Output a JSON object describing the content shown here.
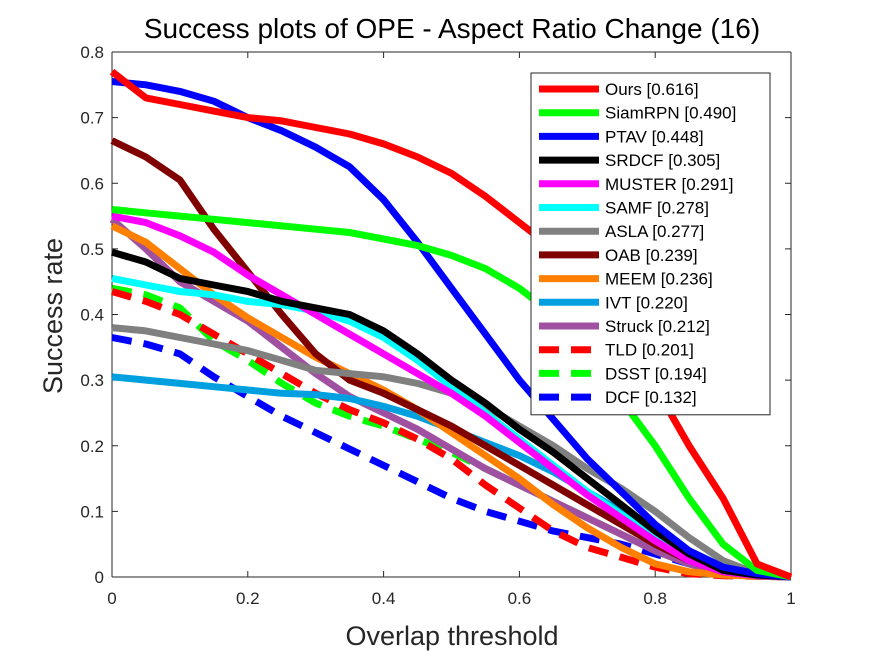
{
  "chart_data": {
    "type": "line",
    "title": "Success plots of OPE - Aspect Ratio Change (16)",
    "xlabel": "Overlap threshold",
    "ylabel": "Success rate",
    "xlim": [
      0,
      1
    ],
    "ylim": [
      0,
      0.8
    ],
    "xticks": [
      0,
      0.2,
      0.4,
      0.6,
      0.8,
      1
    ],
    "xtick_labels": [
      "0",
      "0.2",
      "0.4",
      "0.6",
      "0.8",
      "1"
    ],
    "yticks": [
      0,
      0.1,
      0.2,
      0.3,
      0.4,
      0.5,
      0.6,
      0.7,
      0.8
    ],
    "ytick_labels": [
      "0",
      "0.1",
      "0.2",
      "0.3",
      "0.4",
      "0.5",
      "0.6",
      "0.7",
      "0.8"
    ],
    "grid": false,
    "legend_position": "top-right",
    "x": [
      0,
      0.05,
      0.1,
      0.15,
      0.2,
      0.25,
      0.3,
      0.35,
      0.4,
      0.45,
      0.5,
      0.55,
      0.6,
      0.65,
      0.7,
      0.75,
      0.8,
      0.85,
      0.9,
      0.95,
      1
    ],
    "series": [
      {
        "name": "Ours [0.616]",
        "color": "#ff0000",
        "dashed": false,
        "values": [
          0.77,
          0.73,
          0.72,
          0.71,
          0.7,
          0.695,
          0.685,
          0.675,
          0.66,
          0.64,
          0.615,
          0.58,
          0.54,
          0.5,
          0.45,
          0.38,
          0.29,
          0.2,
          0.12,
          0.02,
          0
        ]
      },
      {
        "name": "SiamRPN [0.490]",
        "color": "#00ff00",
        "dashed": false,
        "values": [
          0.56,
          0.555,
          0.55,
          0.545,
          0.54,
          0.535,
          0.53,
          0.525,
          0.515,
          0.505,
          0.49,
          0.47,
          0.44,
          0.4,
          0.34,
          0.27,
          0.2,
          0.12,
          0.05,
          0.01,
          0
        ]
      },
      {
        "name": "PTAV [0.448]",
        "color": "#0000ff",
        "dashed": false,
        "values": [
          0.755,
          0.75,
          0.74,
          0.725,
          0.7,
          0.68,
          0.655,
          0.625,
          0.575,
          0.51,
          0.44,
          0.37,
          0.3,
          0.24,
          0.18,
          0.13,
          0.08,
          0.04,
          0.015,
          0.005,
          0
        ]
      },
      {
        "name": "SRDCF [0.305]",
        "color": "#000000",
        "dashed": false,
        "values": [
          0.495,
          0.48,
          0.455,
          0.445,
          0.435,
          0.42,
          0.41,
          0.4,
          0.375,
          0.34,
          0.3,
          0.265,
          0.225,
          0.19,
          0.15,
          0.11,
          0.07,
          0.035,
          0.01,
          0.003,
          0
        ]
      },
      {
        "name": "MUSTER [0.291]",
        "color": "#ff00ff",
        "dashed": false,
        "values": [
          0.55,
          0.54,
          0.52,
          0.495,
          0.46,
          0.43,
          0.4,
          0.37,
          0.34,
          0.31,
          0.28,
          0.245,
          0.205,
          0.165,
          0.125,
          0.09,
          0.055,
          0.025,
          0.008,
          0.002,
          0
        ]
      },
      {
        "name": "SAMF [0.278]",
        "color": "#00ffff",
        "dashed": false,
        "values": [
          0.455,
          0.445,
          0.435,
          0.43,
          0.42,
          0.415,
          0.405,
          0.39,
          0.365,
          0.33,
          0.29,
          0.25,
          0.21,
          0.17,
          0.13,
          0.095,
          0.06,
          0.03,
          0.01,
          0.002,
          0
        ]
      },
      {
        "name": "ASLA [0.277]",
        "color": "#808080",
        "dashed": false,
        "values": [
          0.38,
          0.375,
          0.365,
          0.355,
          0.345,
          0.33,
          0.315,
          0.31,
          0.305,
          0.295,
          0.28,
          0.26,
          0.23,
          0.2,
          0.165,
          0.135,
          0.1,
          0.06,
          0.025,
          0.005,
          0
        ]
      },
      {
        "name": "OAB [0.239]",
        "color": "#800000",
        "dashed": false,
        "values": [
          0.665,
          0.64,
          0.605,
          0.53,
          0.465,
          0.4,
          0.34,
          0.3,
          0.28,
          0.255,
          0.23,
          0.2,
          0.17,
          0.14,
          0.11,
          0.08,
          0.05,
          0.025,
          0.008,
          0.002,
          0
        ]
      },
      {
        "name": "MEEM [0.236]",
        "color": "#ff8000",
        "dashed": false,
        "values": [
          0.535,
          0.51,
          0.47,
          0.43,
          0.395,
          0.365,
          0.335,
          0.31,
          0.285,
          0.255,
          0.22,
          0.185,
          0.15,
          0.11,
          0.075,
          0.045,
          0.02,
          0.008,
          0.003,
          0.001,
          0
        ]
      },
      {
        "name": "IVT [0.220]",
        "color": "#00a0e0",
        "dashed": false,
        "values": [
          0.305,
          0.3,
          0.295,
          0.29,
          0.285,
          0.28,
          0.278,
          0.272,
          0.26,
          0.245,
          0.225,
          0.205,
          0.185,
          0.16,
          0.13,
          0.1,
          0.07,
          0.04,
          0.015,
          0.003,
          0
        ]
      },
      {
        "name": "Struck [0.212]",
        "color": "#a050a0",
        "dashed": false,
        "values": [
          0.545,
          0.5,
          0.45,
          0.42,
          0.39,
          0.35,
          0.31,
          0.275,
          0.25,
          0.225,
          0.195,
          0.165,
          0.14,
          0.115,
          0.09,
          0.065,
          0.04,
          0.02,
          0.006,
          0.001,
          0
        ]
      },
      {
        "name": "TLD [0.201]",
        "color": "#ff0000",
        "dashed": true,
        "values": [
          0.435,
          0.42,
          0.4,
          0.37,
          0.34,
          0.31,
          0.28,
          0.255,
          0.235,
          0.21,
          0.18,
          0.14,
          0.105,
          0.07,
          0.045,
          0.03,
          0.015,
          0.005,
          0.002,
          0.001,
          0
        ]
      },
      {
        "name": "DSST [0.194]",
        "color": "#00ff00",
        "dashed": true,
        "values": [
          0.44,
          0.43,
          0.41,
          0.36,
          0.33,
          0.295,
          0.265,
          0.245,
          0.23,
          0.21,
          0.19,
          0.165,
          0.14,
          0.115,
          0.09,
          0.065,
          0.04,
          0.02,
          0.006,
          0.001,
          0
        ]
      },
      {
        "name": "DCF [0.132]",
        "color": "#0000ff",
        "dashed": true,
        "values": [
          0.365,
          0.355,
          0.34,
          0.305,
          0.275,
          0.245,
          0.22,
          0.195,
          0.17,
          0.145,
          0.12,
          0.1,
          0.085,
          0.07,
          0.06,
          0.05,
          0.035,
          0.02,
          0.008,
          0.002,
          0
        ]
      }
    ]
  }
}
